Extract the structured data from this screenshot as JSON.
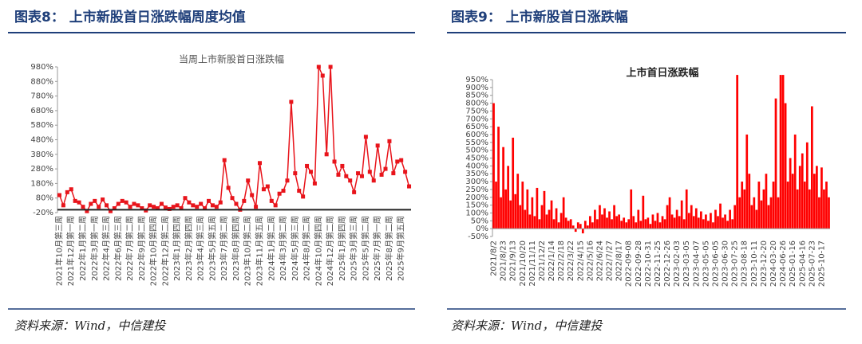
{
  "chart_data": [
    {
      "type": "line",
      "heading": "图表8：  上市新股首日涨跌幅周度均值",
      "title": "当周上市新股首日涨跌幅",
      "source": "资料来源：Wind，中信建投",
      "color": "#e8141b",
      "categories": [
        "2021年10月第三周",
        null,
        null,
        "2021年12月第一周",
        null,
        null,
        "2022年1月第二周",
        null,
        null,
        "2022年3月第一周",
        null,
        null,
        "2022年4月第三周",
        null,
        null,
        "2022年6月第三周",
        null,
        null,
        "2022年7月第二周",
        null,
        null,
        "2022年9月第二周",
        null,
        null,
        "2022年10月第四周",
        null,
        null,
        "2022年12月第二周",
        null,
        null,
        "2023年1月第四周",
        null,
        null,
        "2023年2月第四周",
        null,
        null,
        "2023年4月第三周",
        null,
        null,
        "2023年5月第五周",
        null,
        null,
        "2023年7月第二周",
        null,
        null,
        "2023年8月第四周",
        null,
        null,
        "2023年10月第二周",
        null,
        null,
        "2023年11月第五周",
        null,
        null,
        "2024年1月第二周",
        null,
        null,
        "2024年3月第二周",
        null,
        null,
        "2024年5月第三周",
        null,
        null,
        "2024年8月第二周",
        null,
        null,
        "2024年10月第四周",
        null,
        null,
        "2024年12月第二周",
        null,
        null,
        "2025年1月第四周",
        null,
        null,
        "2025年3月第三周",
        null,
        null,
        "2025年5月第二周",
        null,
        null,
        "2025年7月第一周",
        null,
        null,
        "2025年8月第二周",
        null,
        null,
        "2025年9月第五周",
        null,
        null
      ],
      "values": [
        100,
        30,
        120,
        140,
        60,
        50,
        20,
        -10,
        40,
        60,
        20,
        70,
        30,
        -10,
        10,
        40,
        60,
        50,
        20,
        40,
        30,
        10,
        -5,
        30,
        20,
        10,
        40,
        15,
        5,
        20,
        30,
        10,
        80,
        50,
        30,
        20,
        40,
        10,
        60,
        30,
        20,
        50,
        340,
        150,
        80,
        40,
        0,
        60,
        200,
        100,
        20,
        320,
        140,
        160,
        60,
        30,
        110,
        130,
        200,
        740,
        250,
        130,
        90,
        300,
        260,
        180,
        980,
        920,
        380,
        980,
        330,
        240,
        300,
        230,
        200,
        120,
        250,
        230,
        500,
        260,
        200,
        440,
        240,
        280,
        470,
        250,
        330,
        340,
        260,
        160
      ],
      "ylim": [
        -20,
        980
      ],
      "yticks": [
        {
          "value": -20,
          "label": "-20%"
        },
        {
          "value": 80,
          "label": "80%"
        },
        {
          "value": 180,
          "label": "180%"
        },
        {
          "value": 280,
          "label": "280%"
        },
        {
          "value": 380,
          "label": "380%"
        },
        {
          "value": 480,
          "label": "480%"
        },
        {
          "value": 580,
          "label": "580%"
        },
        {
          "value": 680,
          "label": "680%"
        },
        {
          "value": 780,
          "label": "780%"
        },
        {
          "value": 880,
          "label": "880%"
        },
        {
          "value": 980,
          "label": "980%"
        }
      ]
    },
    {
      "type": "bar",
      "heading": "图表9：  上市新股首日涨跌幅",
      "title": "上市首日涨跌幅",
      "source": "资料来源：Wind，中信建投",
      "color": "#ff0000",
      "categories": [
        "2021/8/2",
        null,
        null,
        null,
        "2021/8/23",
        null,
        null,
        null,
        "2021/9/13",
        null,
        null,
        null,
        "2021/10/20",
        null,
        null,
        null,
        "2021/11/11",
        null,
        null,
        null,
        "2021/12/2",
        null,
        null,
        null,
        "2022/1/14",
        null,
        null,
        null,
        "2022/2/18",
        null,
        null,
        null,
        "2022/3/22",
        null,
        null,
        null,
        "2022/4/15",
        null,
        null,
        null,
        "2022/5/16",
        null,
        null,
        null,
        "2022/6/24",
        null,
        null,
        null,
        "2022/7/27",
        null,
        null,
        null,
        "2022/8/17",
        null,
        null,
        null,
        "2022-09-08",
        null,
        null,
        null,
        "2022-09-28",
        null,
        null,
        null,
        "2022-10-31",
        null,
        null,
        null,
        "2022-11-25",
        null,
        null,
        null,
        "2022-12-26",
        null,
        null,
        null,
        "2023-02-03",
        null,
        null,
        null,
        "2023-03-05",
        null,
        null,
        null,
        "2023-04-07",
        null,
        null,
        null,
        "2023-05-05",
        null,
        null,
        null,
        "2023-06-05",
        null,
        null,
        null,
        "2023-06-30",
        null,
        null,
        null,
        "2023-07-25",
        null,
        null,
        null,
        "2023-08-18",
        null,
        null,
        null,
        "2023-10-11",
        null,
        null,
        null,
        "2023-12-20",
        null,
        null,
        null,
        "2024-03-20",
        null,
        null,
        null,
        "2024-06-26",
        null,
        null,
        null,
        "2025-01-16",
        null,
        null,
        null,
        "2025-04-16",
        null,
        null,
        null,
        "2025-07-23",
        null,
        null,
        null,
        "2025-10-17",
        null,
        null,
        null
      ],
      "values": [
        800,
        300,
        650,
        200,
        520,
        250,
        400,
        180,
        580,
        220,
        350,
        150,
        300,
        120,
        250,
        90,
        200,
        80,
        260,
        60,
        150,
        240,
        90,
        120,
        180,
        60,
        130,
        40,
        100,
        200,
        70,
        50,
        60,
        20,
        -20,
        40,
        30,
        -30,
        50,
        20,
        80,
        40,
        120,
        60,
        150,
        90,
        130,
        70,
        110,
        60,
        150,
        80,
        90,
        50,
        70,
        40,
        60,
        250,
        80,
        40,
        120,
        50,
        210,
        60,
        70,
        30,
        90,
        50,
        100,
        40,
        80,
        60,
        150,
        200,
        90,
        70,
        120,
        80,
        180,
        60,
        250,
        100,
        150,
        80,
        130,
        70,
        110,
        60,
        90,
        50,
        100,
        40,
        120,
        80,
        160,
        70,
        90,
        50,
        120,
        60,
        150,
        980,
        200,
        300,
        250,
        600,
        350,
        150,
        200,
        120,
        300,
        180,
        250,
        350,
        150,
        200,
        300,
        830,
        200,
        980,
        980,
        800,
        300,
        450,
        350,
        600,
        250,
        400,
        480,
        300,
        550,
        250,
        780,
        350,
        400,
        200,
        390,
        250,
        300,
        200
      ],
      "ylim": [
        -50,
        950
      ],
      "yticks": [
        {
          "value": -50,
          "label": "-50%"
        },
        {
          "value": 0,
          "label": "0%"
        },
        {
          "value": 50,
          "label": "50%"
        },
        {
          "value": 100,
          "label": "100%"
        },
        {
          "value": 150,
          "label": "150%"
        },
        {
          "value": 200,
          "label": "200%"
        },
        {
          "value": 250,
          "label": "250%"
        },
        {
          "value": 300,
          "label": "300%"
        },
        {
          "value": 350,
          "label": "350%"
        },
        {
          "value": 400,
          "label": "400%"
        },
        {
          "value": 450,
          "label": "450%"
        },
        {
          "value": 500,
          "label": "500%"
        },
        {
          "value": 550,
          "label": "550%"
        },
        {
          "value": 600,
          "label": "600%"
        },
        {
          "value": 650,
          "label": "650%"
        },
        {
          "value": 700,
          "label": "700%"
        },
        {
          "value": 750,
          "label": "750%"
        },
        {
          "value": 800,
          "label": "800%"
        },
        {
          "value": 850,
          "label": "850%"
        },
        {
          "value": 900,
          "label": "900%"
        },
        {
          "value": 950,
          "label": "950%"
        }
      ]
    }
  ]
}
